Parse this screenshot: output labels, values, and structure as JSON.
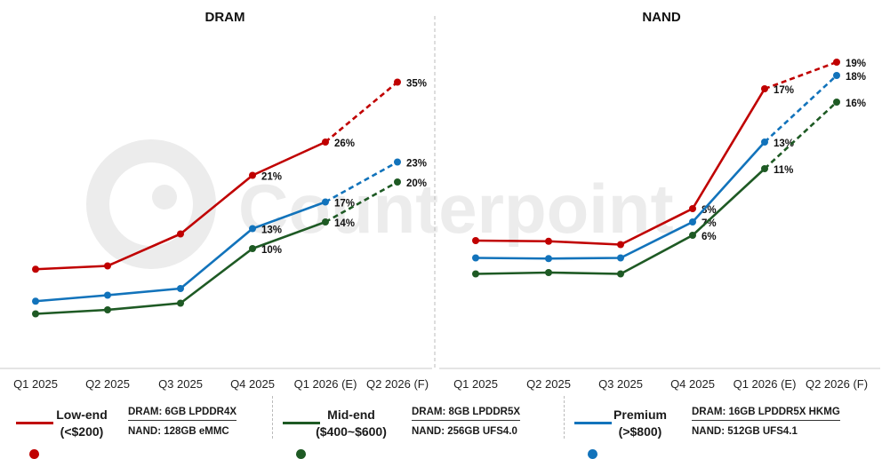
{
  "colors": {
    "low": "#c00000",
    "mid": "#1e5a24",
    "premium": "#1273bb",
    "watermark": "#ececec"
  },
  "watermark": "Counterpoint",
  "chart_data": [
    {
      "type": "line",
      "title": "DRAM",
      "categories": [
        "Q1 2025",
        "Q2 2025",
        "Q3 2025",
        "Q4 2025",
        "Q1 2026 (E)",
        "Q2 2026 (F)"
      ],
      "ylim": [
        -8,
        42
      ],
      "grid": false,
      "legend": "bottom",
      "forecast_from_index": 4,
      "series": [
        {
          "name": "Low-end (<$200)",
          "color_key": "low",
          "values": [
            6.9,
            7.4,
            12.2,
            21,
            26,
            35
          ],
          "labels": [
            "",
            "",
            "",
            "21%",
            "26%",
            "35%"
          ]
        },
        {
          "name": "Premium (>$800)",
          "color_key": "premium",
          "values": [
            2.1,
            3.0,
            4.0,
            13,
            17,
            23
          ],
          "labels": [
            "",
            "",
            "",
            "13%",
            "17%",
            "23%"
          ]
        },
        {
          "name": "Mid-end ($400~$600)",
          "color_key": "mid",
          "values": [
            0.2,
            0.8,
            1.8,
            10,
            14,
            20
          ],
          "labels": [
            "",
            "",
            "",
            "10%",
            "14%",
            "20%"
          ]
        }
      ]
    },
    {
      "type": "line",
      "title": "NAND",
      "categories": [
        "Q1 2025",
        "Q2 2025",
        "Q3 2025",
        "Q4 2025",
        "Q1 2026 (E)",
        "Q2 2026 (F)"
      ],
      "ylim": [
        -4,
        21
      ],
      "grid": false,
      "legend": "bottom",
      "forecast_from_index": 4,
      "series": [
        {
          "name": "Low-end (<$200)",
          "color_key": "low",
          "values": [
            5.6,
            5.55,
            5.3,
            8,
            17,
            19
          ],
          "labels": [
            "",
            "",
            "",
            "8%",
            "17%",
            "19%"
          ]
        },
        {
          "name": "Premium (>$800)",
          "color_key": "premium",
          "values": [
            4.3,
            4.25,
            4.3,
            7,
            13,
            18
          ],
          "labels": [
            "",
            "",
            "",
            "7%",
            "13%",
            "18%"
          ]
        },
        {
          "name": "Mid-end ($400~$600)",
          "color_key": "mid",
          "values": [
            3.1,
            3.2,
            3.1,
            6,
            11,
            16
          ],
          "labels": [
            "",
            "",
            "",
            "6%",
            "11%",
            "16%"
          ]
        }
      ]
    }
  ],
  "legend": [
    {
      "key": "low",
      "name_line1": "Low-end",
      "name_line2": "(<$200)",
      "dram_spec": "DRAM: 6GB LPDDR4X",
      "nand_spec": "NAND: 128GB eMMC"
    },
    {
      "key": "mid",
      "name_line1": "Mid-end",
      "name_line2": "($400~$600)",
      "dram_spec": "DRAM: 8GB LPDDR5X",
      "nand_spec": "NAND: 256GB UFS4.0"
    },
    {
      "key": "premium",
      "name_line1": "Premium",
      "name_line2": "(>$800)",
      "dram_spec": "DRAM: 16GB LPDDR5X HKMG",
      "nand_spec": "NAND: 512GB UFS4.1"
    }
  ]
}
